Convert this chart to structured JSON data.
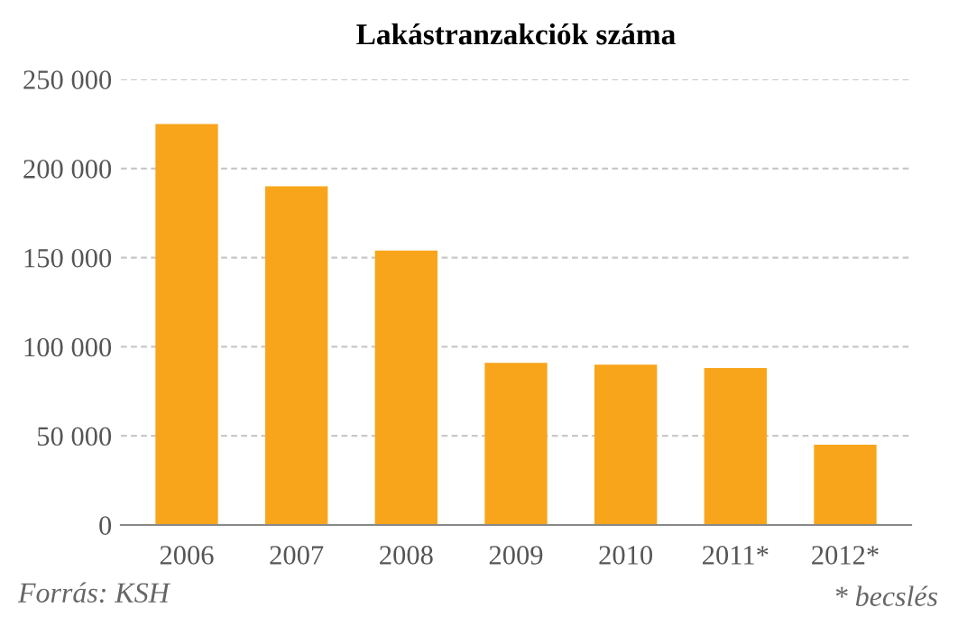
{
  "chart_data": {
    "type": "bar",
    "title": "Lakástranzakciók száma",
    "categories": [
      "2006",
      "2007",
      "2008",
      "2009",
      "2010",
      "2011*",
      "2012*"
    ],
    "values": [
      225000,
      190000,
      154000,
      91000,
      90000,
      88000,
      45000
    ],
    "color": "#f8a51c",
    "ylim": [
      0,
      250000
    ],
    "yticks": [
      {
        "value": 0,
        "label": "0"
      },
      {
        "value": 50000,
        "label": "50 000"
      },
      {
        "value": 100000,
        "label": "100 000"
      },
      {
        "value": 150000,
        "label": "150 000"
      },
      {
        "value": 200000,
        "label": "200 000"
      },
      {
        "value": 250000,
        "label": "250 000"
      }
    ],
    "grid": "y",
    "annotations": [
      "Forrás: KSH",
      "* becslés"
    ]
  }
}
